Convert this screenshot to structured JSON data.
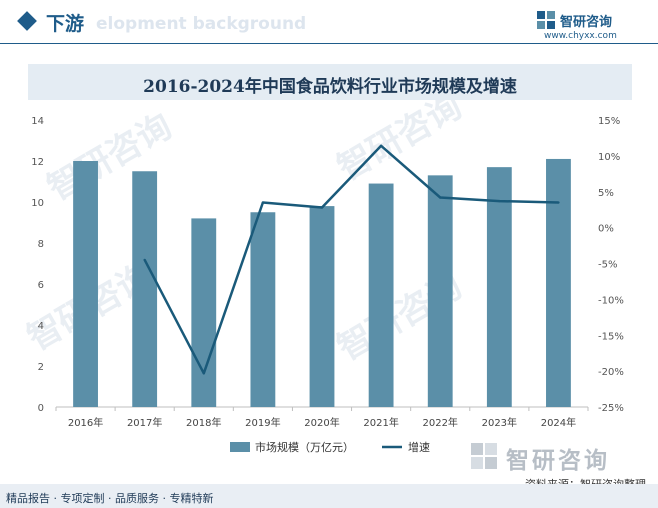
{
  "header": {
    "title": "下游",
    "ghost_text": "elopment background"
  },
  "brand": {
    "name": "智研咨询",
    "url": "www.chyxx.com"
  },
  "watermark_text": "智研咨询",
  "chart_data": {
    "type": "bar+line",
    "title": "2016-2024年中国食品饮料行业市场规模及增速",
    "categories": [
      "2016年",
      "2017年",
      "2018年",
      "2019年",
      "2020年",
      "2021年",
      "2022年",
      "2023年",
      "2024年"
    ],
    "series": [
      {
        "name": "市场规模（万亿元）",
        "type": "bar",
        "axis": "left",
        "color": "#5b8fa8",
        "values": [
          12.0,
          11.5,
          9.2,
          9.5,
          9.8,
          10.9,
          11.3,
          11.7,
          12.1
        ]
      },
      {
        "name": "增速",
        "type": "line",
        "axis": "right",
        "color": "#1a5a7a",
        "values": [
          null,
          -4.5,
          -20.3,
          3.5,
          2.8,
          11.4,
          4.2,
          3.7,
          3.5
        ]
      }
    ],
    "left_axis": {
      "min": 0,
      "max": 14,
      "ticks": [
        "0",
        "2",
        "4",
        "6",
        "8",
        "10",
        "12",
        "14"
      ]
    },
    "right_axis": {
      "min": -25,
      "max": 15,
      "ticks": [
        "-25%",
        "-20%",
        "-15%",
        "-10%",
        "-5%",
        "0%",
        "5%",
        "10%",
        "15%"
      ]
    },
    "legend": {
      "position": "bottom-center"
    }
  },
  "footer_logo_text": "智研咨询",
  "source": "资料来源：智研咨询整理",
  "footer": "精品报告 · 专项定制 · 品质服务 · 专精特新"
}
